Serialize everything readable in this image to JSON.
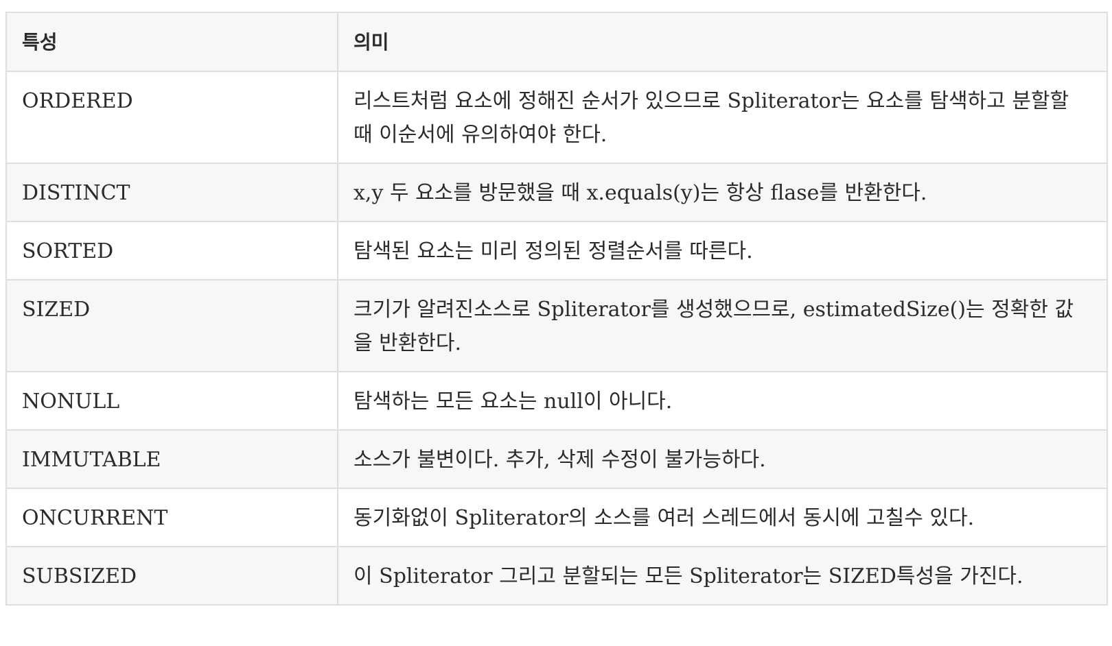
{
  "table": {
    "headers": [
      "특성",
      "의미"
    ],
    "rows": [
      {
        "name": "ORDERED",
        "meaning": "리스트처럼 요소에 정해진 순서가 있으므로 Spliterator는 요소를 탐색하고 분할할 때 이순서에 유의하여야 한다."
      },
      {
        "name": "DISTINCT",
        "meaning": "x,y 두 요소를 방문했을 때 x.equals(y)는 항상 flase를 반환한다."
      },
      {
        "name": "SORTED",
        "meaning": "탐색된 요소는 미리 정의된 정렬순서를 따른다."
      },
      {
        "name": "SIZED",
        "meaning": "크기가 알려진소스로 Spliterator를 생성했으므로, estimatedSize()는 정확한 값을 반환한다."
      },
      {
        "name": "NONULL",
        "meaning": "탐색하는 모든 요소는 null이 아니다."
      },
      {
        "name": "IMMUTABLE",
        "meaning": "소스가 불변이다. 추가, 삭제 수정이 불가능하다."
      },
      {
        "name": "ONCURRENT",
        "meaning": "동기화없이 Spliterator의 소스를 여러 스레드에서 동시에 고칠수 있다."
      },
      {
        "name": "SUBSIZED",
        "meaning": "이 Spliterator 그리고 분할되는 모든 Spliterator는 SIZED특성을 가진다."
      }
    ]
  }
}
